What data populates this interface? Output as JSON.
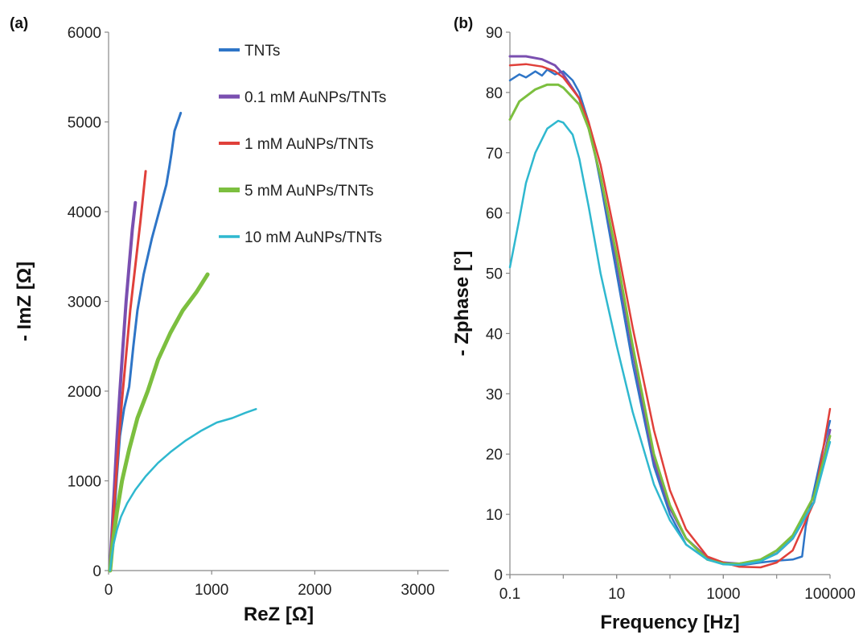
{
  "chart_data": [
    {
      "panel": "(a)",
      "type": "line",
      "xlabel": "ReZ [Ω]",
      "ylabel": "- ImZ [Ω]",
      "xlim": [
        0,
        3300
      ],
      "ylim": [
        0,
        6000
      ],
      "xticks": [
        "0",
        "1000",
        "2000",
        "3000"
      ],
      "yticks": [
        "0",
        "1000",
        "2000",
        "3000",
        "4000",
        "5000",
        "6000"
      ],
      "grid": false,
      "legend": "top-right",
      "series": [
        {
          "name": "TNTs",
          "color": "#2e75c7",
          "width": 3,
          "points": [
            [
              20,
              0
            ],
            [
              40,
              300
            ],
            [
              60,
              700
            ],
            [
              80,
              1050
            ],
            [
              110,
              1500
            ],
            [
              150,
              1800
            ],
            [
              200,
              2050
            ],
            [
              240,
              2500
            ],
            [
              280,
              2900
            ],
            [
              340,
              3300
            ],
            [
              420,
              3700
            ],
            [
              490,
              4000
            ],
            [
              560,
              4300
            ],
            [
              590,
              4500
            ],
            [
              610,
              4650
            ],
            [
              640,
              4900
            ],
            [
              700,
              5100
            ]
          ]
        },
        {
          "name": "0.1 mM AuNPs/TNTs",
          "color": "#7a4fb0",
          "width": 4,
          "points": [
            [
              10,
              0
            ],
            [
              30,
              350
            ],
            [
              55,
              900
            ],
            [
              80,
              1450
            ],
            [
              110,
              2000
            ],
            [
              140,
              2500
            ],
            [
              170,
              3000
            ],
            [
              200,
              3400
            ],
            [
              230,
              3800
            ],
            [
              260,
              4100
            ]
          ]
        },
        {
          "name": "1 mM AuNPs/TNTs",
          "color": "#e0403a",
          "width": 3,
          "points": [
            [
              10,
              0
            ],
            [
              30,
              300
            ],
            [
              60,
              800
            ],
            [
              90,
              1300
            ],
            [
              130,
              1900
            ],
            [
              170,
              2400
            ],
            [
              210,
              2900
            ],
            [
              260,
              3400
            ],
            [
              310,
              3900
            ],
            [
              360,
              4450
            ]
          ]
        },
        {
          "name": "5 mM AuNPs/TNTs",
          "color": "#7cbf3f",
          "width": 5,
          "points": [
            [
              15,
              0
            ],
            [
              40,
              300
            ],
            [
              80,
              650
            ],
            [
              130,
              1000
            ],
            [
              200,
              1350
            ],
            [
              280,
              1700
            ],
            [
              380,
              2000
            ],
            [
              480,
              2350
            ],
            [
              600,
              2650
            ],
            [
              720,
              2900
            ],
            [
              850,
              3100
            ],
            [
              960,
              3300
            ]
          ]
        },
        {
          "name": "10 mM AuNPs/TNTs",
          "color": "#2fb8cf",
          "width": 2.5,
          "points": [
            [
              15,
              0
            ],
            [
              30,
              150
            ],
            [
              50,
              300
            ],
            [
              80,
              450
            ],
            [
              120,
              600
            ],
            [
              180,
              750
            ],
            [
              260,
              900
            ],
            [
              360,
              1050
            ],
            [
              480,
              1200
            ],
            [
              600,
              1320
            ],
            [
              750,
              1450
            ],
            [
              900,
              1560
            ],
            [
              1050,
              1650
            ],
            [
              1200,
              1700
            ],
            [
              1330,
              1760
            ],
            [
              1430,
              1800
            ]
          ]
        }
      ]
    },
    {
      "panel": "(b)",
      "type": "line",
      "xlabel": "Frequency [Hz]",
      "ylabel": "- Zphase [°]",
      "xscale": "log",
      "xlim": [
        0.1,
        100000
      ],
      "ylim": [
        0,
        90
      ],
      "xticks": [
        "0.1",
        "10",
        "1000",
        "100000"
      ],
      "yticks": [
        "0",
        "10",
        "20",
        "30",
        "40",
        "50",
        "60",
        "70",
        "80",
        "90"
      ],
      "grid": false,
      "series": [
        {
          "color": "#2e75c7",
          "width": 2.5,
          "points": [
            [
              0.1,
              82
            ],
            [
              0.15,
              83
            ],
            [
              0.2,
              82.5
            ],
            [
              0.3,
              83.5
            ],
            [
              0.4,
              82.8
            ],
            [
              0.5,
              83.8
            ],
            [
              0.7,
              83
            ],
            [
              1,
              83.5
            ],
            [
              1.5,
              82
            ],
            [
              2,
              80
            ],
            [
              3,
              75
            ],
            [
              5,
              65
            ],
            [
              10,
              50
            ],
            [
              20,
              35
            ],
            [
              50,
              18
            ],
            [
              100,
              10
            ],
            [
              200,
              5
            ],
            [
              500,
              2.5
            ],
            [
              1000,
              1.8
            ],
            [
              2000,
              1.5
            ],
            [
              5000,
              2
            ],
            [
              10000,
              2.3
            ],
            [
              20000,
              2.5
            ],
            [
              30000,
              3
            ],
            [
              35000,
              8
            ],
            [
              50000,
              14
            ],
            [
              70000,
              20
            ],
            [
              100000,
              25.5
            ]
          ]
        },
        {
          "color": "#7a4fb0",
          "width": 3,
          "points": [
            [
              0.1,
              86
            ],
            [
              0.2,
              86
            ],
            [
              0.4,
              85.5
            ],
            [
              0.7,
              84.5
            ],
            [
              1,
              83
            ],
            [
              2,
              79
            ],
            [
              3,
              74
            ],
            [
              5,
              66
            ],
            [
              10,
              52
            ],
            [
              20,
              37
            ],
            [
              50,
              19
            ],
            [
              100,
              11
            ],
            [
              200,
              6
            ],
            [
              500,
              2.8
            ],
            [
              1000,
              2
            ],
            [
              2000,
              1.8
            ],
            [
              5000,
              2.3
            ],
            [
              10000,
              3.5
            ],
            [
              20000,
              6
            ],
            [
              50000,
              12
            ],
            [
              100000,
              24
            ]
          ]
        },
        {
          "color": "#e0403a",
          "width": 2.5,
          "points": [
            [
              0.1,
              84.5
            ],
            [
              0.2,
              84.7
            ],
            [
              0.4,
              84.3
            ],
            [
              0.7,
              83.5
            ],
            [
              1,
              82.5
            ],
            [
              2,
              79
            ],
            [
              3,
              75
            ],
            [
              5,
              68
            ],
            [
              10,
              55
            ],
            [
              20,
              41
            ],
            [
              50,
              24
            ],
            [
              100,
              14
            ],
            [
              200,
              7.5
            ],
            [
              500,
              3
            ],
            [
              1000,
              2
            ],
            [
              2000,
              1.3
            ],
            [
              5000,
              1.2
            ],
            [
              10000,
              2
            ],
            [
              20000,
              4
            ],
            [
              50000,
              12
            ],
            [
              100000,
              27.5
            ]
          ]
        },
        {
          "color": "#7cbf3f",
          "width": 3,
          "points": [
            [
              0.1,
              75.5
            ],
            [
              0.15,
              78.5
            ],
            [
              0.3,
              80.5
            ],
            [
              0.5,
              81.3
            ],
            [
              0.8,
              81.3
            ],
            [
              1,
              80.8
            ],
            [
              2,
              78
            ],
            [
              3,
              74
            ],
            [
              5,
              66
            ],
            [
              10,
              53
            ],
            [
              20,
              38
            ],
            [
              50,
              20
            ],
            [
              100,
              11.5
            ],
            [
              200,
              6
            ],
            [
              500,
              2.5
            ],
            [
              1000,
              1.8
            ],
            [
              2000,
              1.8
            ],
            [
              5000,
              2.5
            ],
            [
              10000,
              4
            ],
            [
              20000,
              6.5
            ],
            [
              50000,
              13
            ],
            [
              100000,
              23
            ]
          ]
        },
        {
          "color": "#2fb8cf",
          "width": 2.5,
          "points": [
            [
              0.1,
              51
            ],
            [
              0.15,
              59
            ],
            [
              0.2,
              65
            ],
            [
              0.3,
              70
            ],
            [
              0.5,
              74
            ],
            [
              0.8,
              75.3
            ],
            [
              1,
              75
            ],
            [
              1.5,
              73
            ],
            [
              2,
              69
            ],
            [
              3,
              61
            ],
            [
              5,
              50
            ],
            [
              10,
              38
            ],
            [
              20,
              27
            ],
            [
              50,
              15
            ],
            [
              100,
              9
            ],
            [
              200,
              5
            ],
            [
              500,
              2.5
            ],
            [
              1000,
              1.7
            ],
            [
              2000,
              1.6
            ],
            [
              5000,
              2.2
            ],
            [
              10000,
              3.5
            ],
            [
              20000,
              6
            ],
            [
              50000,
              12
            ],
            [
              100000,
              22
            ]
          ]
        }
      ]
    }
  ]
}
